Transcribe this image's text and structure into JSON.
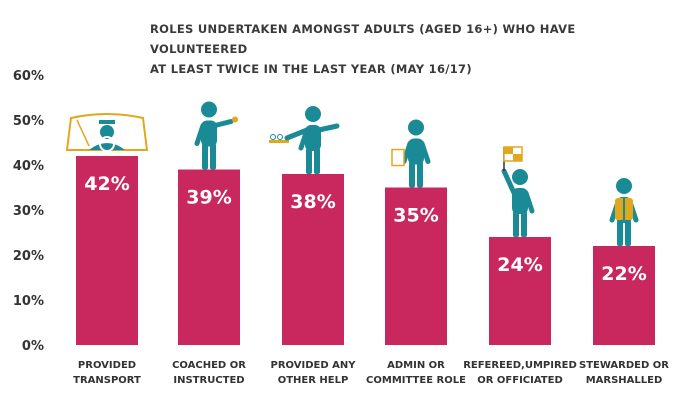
{
  "chart_data": {
    "type": "bar",
    "title_lines": [
      "ROLES UNDERTAKEN AMONGST ADULTS (AGED 16+) WHO HAVE VOLUNTEERED",
      "AT LEAST TWICE IN THE LAST YEAR (MAY 16/17)"
    ],
    "categories": [
      [
        "PROVIDED",
        "TRANSPORT"
      ],
      [
        "COACHED OR",
        "INSTRUCTED"
      ],
      [
        "PROVIDED ANY",
        "OTHER HELP"
      ],
      [
        "ADMIN OR",
        "COMMITTEE ROLE"
      ],
      [
        "REFEREED,UMPIRED",
        "OR OFFICIATED"
      ],
      [
        "STEWARDED OR",
        "MARSHALLED"
      ]
    ],
    "values": [
      42,
      39,
      38,
      35,
      24,
      22
    ],
    "data_labels": [
      "42%",
      "39%",
      "38%",
      "35%",
      "24%",
      "22%"
    ],
    "yticks": [
      "0%",
      "10%",
      "20%",
      "30%",
      "40%",
      "50%",
      "60%"
    ],
    "ylim": [
      0,
      60
    ],
    "grid": false,
    "icons": [
      "car-driver-icon",
      "coach-with-whistle-icon",
      "helper-with-tray-icon",
      "admin-with-clipboard-icon",
      "referee-with-flag-icon",
      "steward-in-vest-icon"
    ],
    "colors": {
      "bar": "#C9285E",
      "icon": "#1A8A96",
      "accent": "#E2A81D",
      "text": "#333333"
    }
  }
}
